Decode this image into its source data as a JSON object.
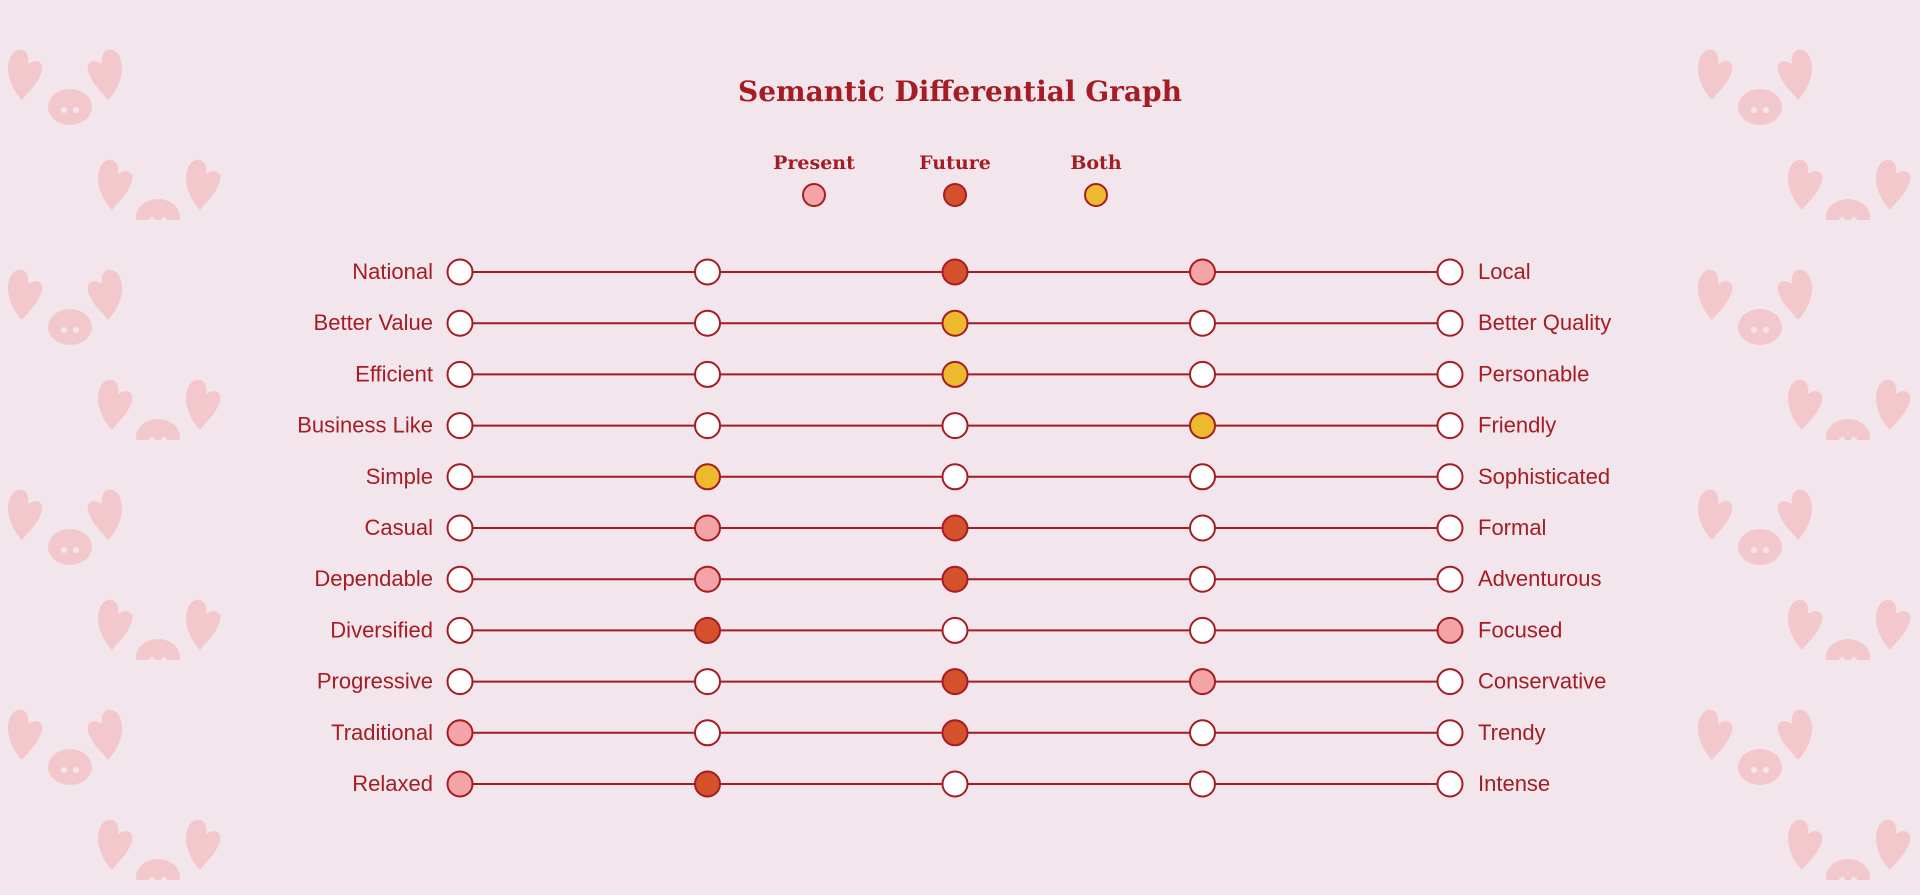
{
  "chart_data": {
    "type": "semantic-differential",
    "title": "Semantic Differential Graph",
    "scale_points": 5,
    "legend": [
      {
        "name": "Present",
        "color": "#f4a4a6"
      },
      {
        "name": "Future",
        "color": "#d4512c"
      },
      {
        "name": "Both",
        "color": "#ecba2c"
      }
    ],
    "rows": [
      {
        "left": "National",
        "right": "Local",
        "present": 4,
        "future": 3
      },
      {
        "left": "Better Value",
        "right": "Better Quality",
        "present": 3,
        "future": 3
      },
      {
        "left": "Efficient",
        "right": "Personable",
        "present": 3,
        "future": 3
      },
      {
        "left": "Business Like",
        "right": "Friendly",
        "present": 4,
        "future": 4
      },
      {
        "left": "Simple",
        "right": "Sophisticated",
        "present": 2,
        "future": 2
      },
      {
        "left": "Casual",
        "right": "Formal",
        "present": 2,
        "future": 3
      },
      {
        "left": "Dependable",
        "right": "Adventurous",
        "present": 2,
        "future": 3
      },
      {
        "left": "Diversified",
        "right": "Focused",
        "present": 5,
        "future": 2
      },
      {
        "left": "Progressive",
        "right": "Conservative",
        "present": 4,
        "future": 3
      },
      {
        "left": "Traditional",
        "right": "Trendy",
        "present": 1,
        "future": 3
      },
      {
        "left": "Relaxed",
        "right": "Intense",
        "present": 1,
        "future": 2
      }
    ]
  },
  "colors": {
    "line": "#a51c24",
    "empty_fill": "#ffffff",
    "background": "#f2e6ec",
    "pattern": "#f2c8cc"
  }
}
